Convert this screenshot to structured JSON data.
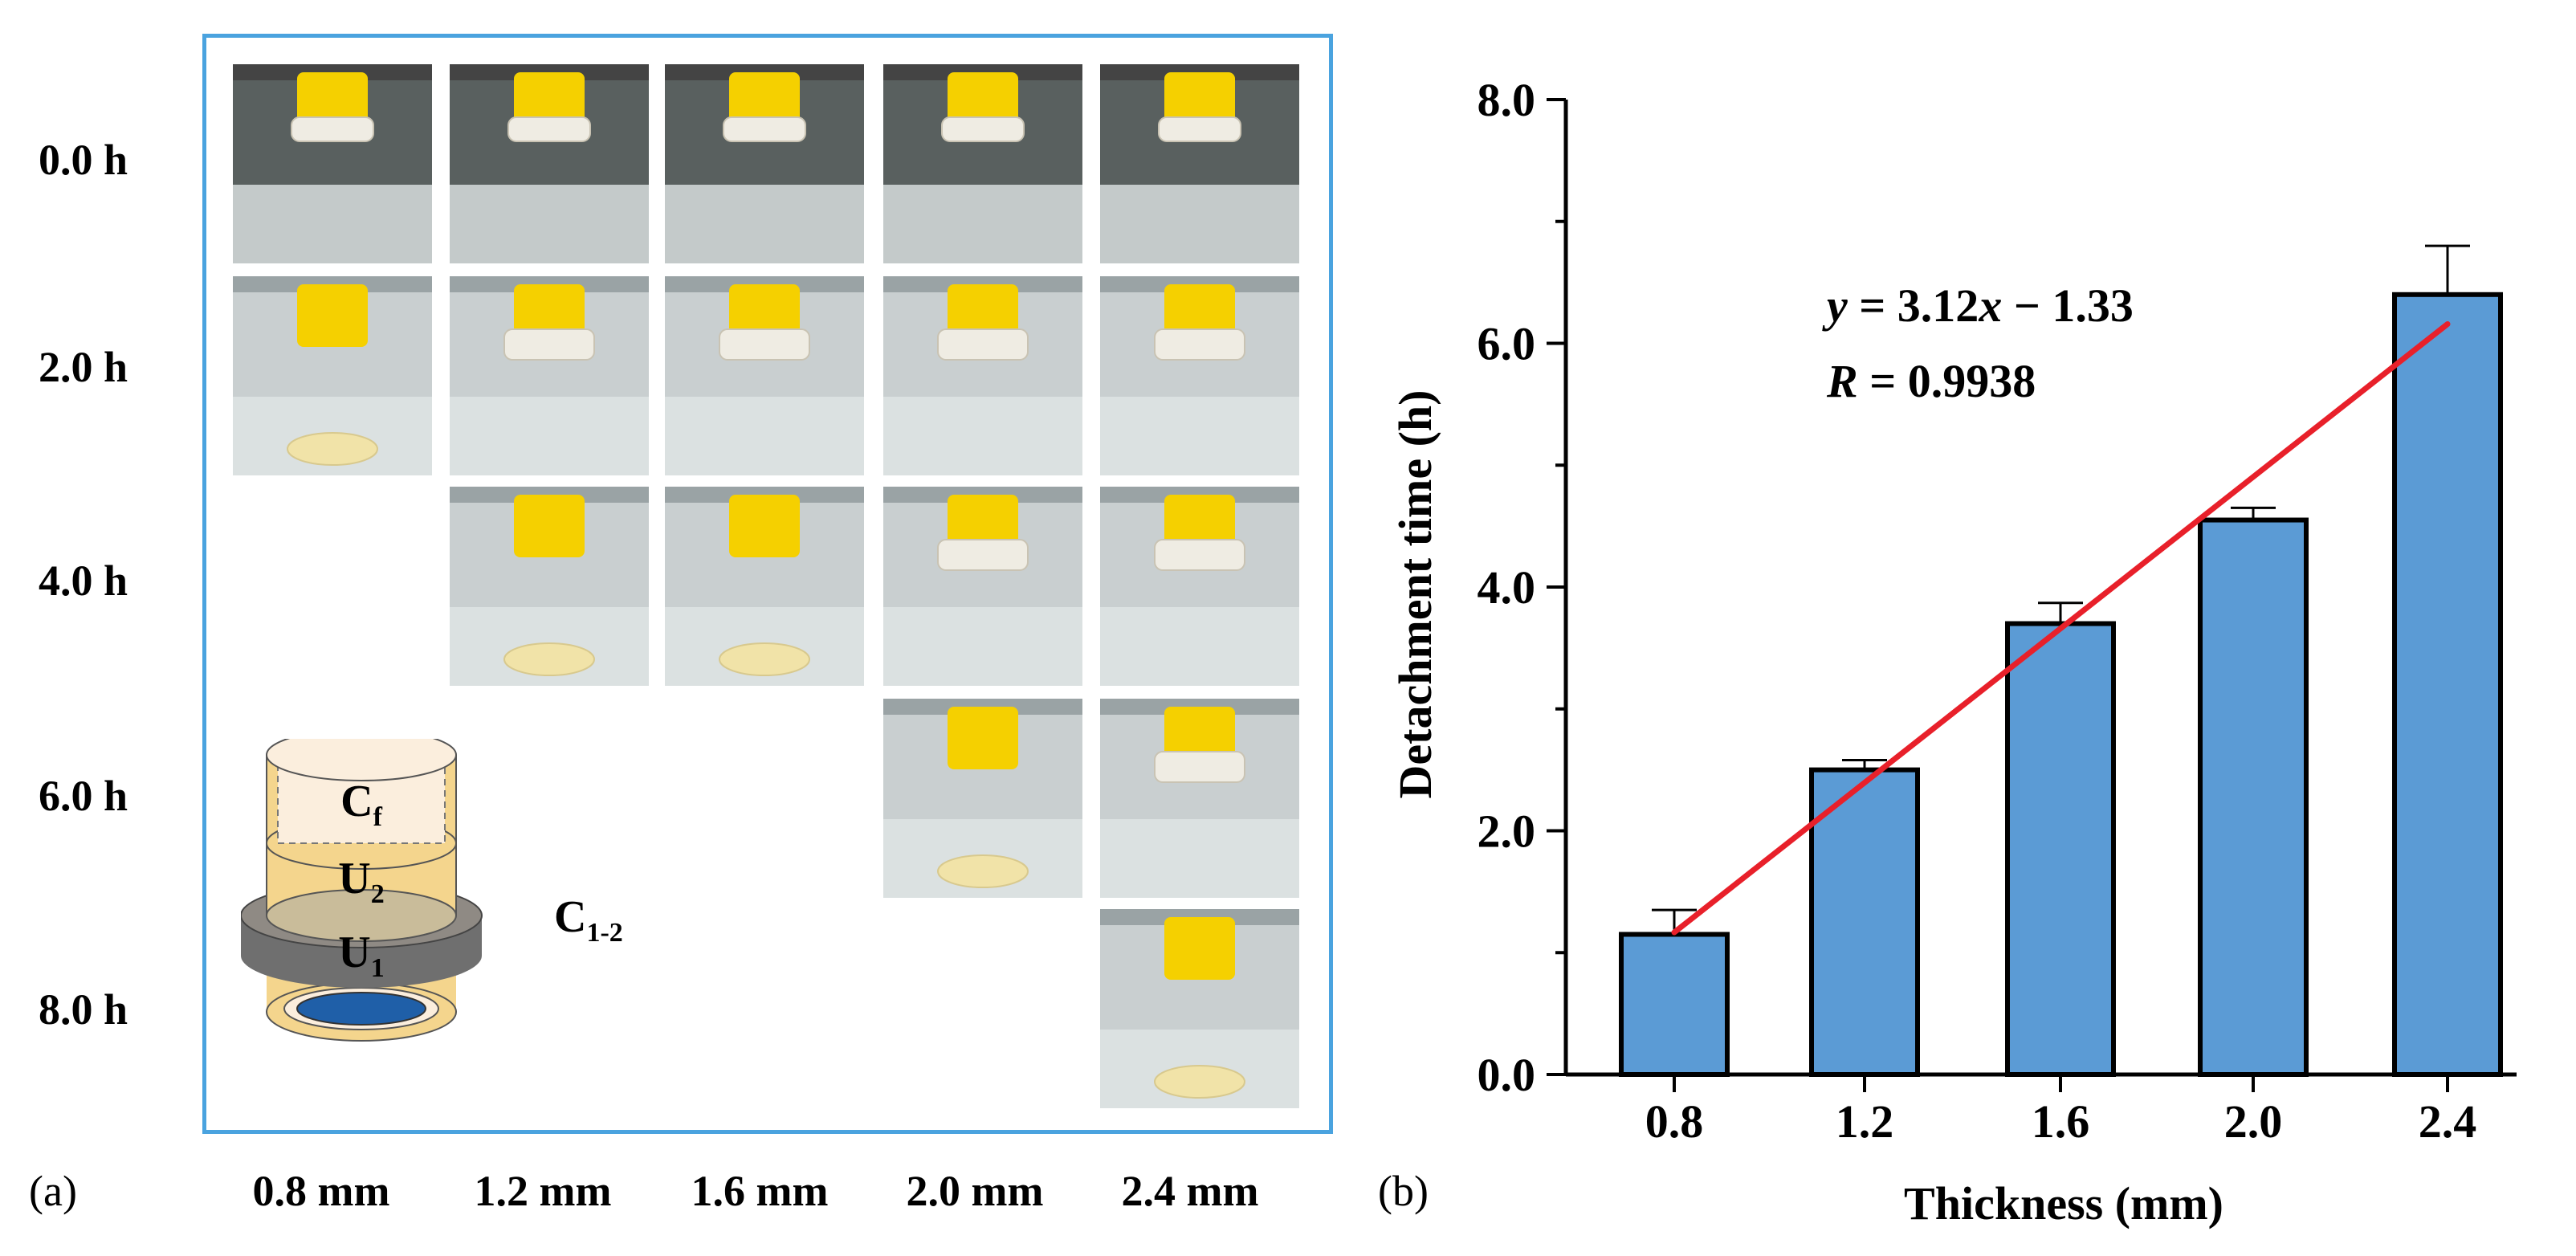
{
  "panel_a": {
    "label": "(a)",
    "rows": [
      "0.0 h",
      "2.0 h",
      "4.0 h",
      "6.0 h",
      "8.0 h"
    ],
    "columns": [
      "0.8 mm",
      "1.2 mm",
      "1.6 mm",
      "2.0 mm",
      "2.4 mm"
    ],
    "photos": [
      {
        "row": 0,
        "col": 0,
        "state": "attached"
      },
      {
        "row": 0,
        "col": 1,
        "state": "attached"
      },
      {
        "row": 0,
        "col": 2,
        "state": "attached"
      },
      {
        "row": 0,
        "col": 3,
        "state": "attached"
      },
      {
        "row": 0,
        "col": 4,
        "state": "attached"
      },
      {
        "row": 1,
        "col": 0,
        "state": "detached"
      },
      {
        "row": 1,
        "col": 1,
        "state": "swollen"
      },
      {
        "row": 1,
        "col": 2,
        "state": "swollen"
      },
      {
        "row": 1,
        "col": 3,
        "state": "swollen"
      },
      {
        "row": 1,
        "col": 4,
        "state": "swollen"
      },
      {
        "row": 2,
        "col": 1,
        "state": "detached"
      },
      {
        "row": 2,
        "col": 2,
        "state": "detached"
      },
      {
        "row": 2,
        "col": 3,
        "state": "swollen"
      },
      {
        "row": 2,
        "col": 4,
        "state": "swollen"
      },
      {
        "row": 3,
        "col": 3,
        "state": "detached"
      },
      {
        "row": 3,
        "col": 4,
        "state": "swollen"
      },
      {
        "row": 4,
        "col": 4,
        "state": "detached"
      }
    ],
    "schematic": {
      "labels": {
        "cf": {
          "main": "C",
          "sub": "f"
        },
        "u2": {
          "main": "U",
          "sub": "2"
        },
        "u1": {
          "main": "U",
          "sub": "1"
        },
        "c12": {
          "main": "C",
          "sub": "1-2"
        }
      },
      "colors": {
        "cap": "#f4d58d",
        "inner": "#fbeedd",
        "ring": "#6f6f6f",
        "base": "#1f5fa8"
      }
    }
  },
  "panel_b": {
    "label": "(b)",
    "colors": {
      "bar": "#5b9bd5",
      "fit": "#e8202a"
    },
    "equation": {
      "y": "y",
      "middle": " = 3.12",
      "x": "x",
      "tail": " − 1.33"
    },
    "r_value": {
      "r": "R",
      "tail": " = 0.9938"
    }
  },
  "chart_data": {
    "type": "bar",
    "title": "",
    "xlabel": "Thickness (mm)",
    "ylabel": "Detachment time (h)",
    "categories": [
      "0.8",
      "1.2",
      "1.6",
      "2.0",
      "2.4"
    ],
    "values": [
      1.15,
      2.5,
      3.7,
      4.55,
      6.4
    ],
    "errors": [
      0.2,
      0.08,
      0.17,
      0.1,
      0.4
    ],
    "ylim": [
      0,
      8
    ],
    "yticks": [
      "0.0",
      "2.0",
      "4.0",
      "6.0",
      "8.0"
    ],
    "fit": {
      "slope": 3.12,
      "intercept": -1.33,
      "x_range": [
        0.8,
        2.4
      ]
    }
  }
}
